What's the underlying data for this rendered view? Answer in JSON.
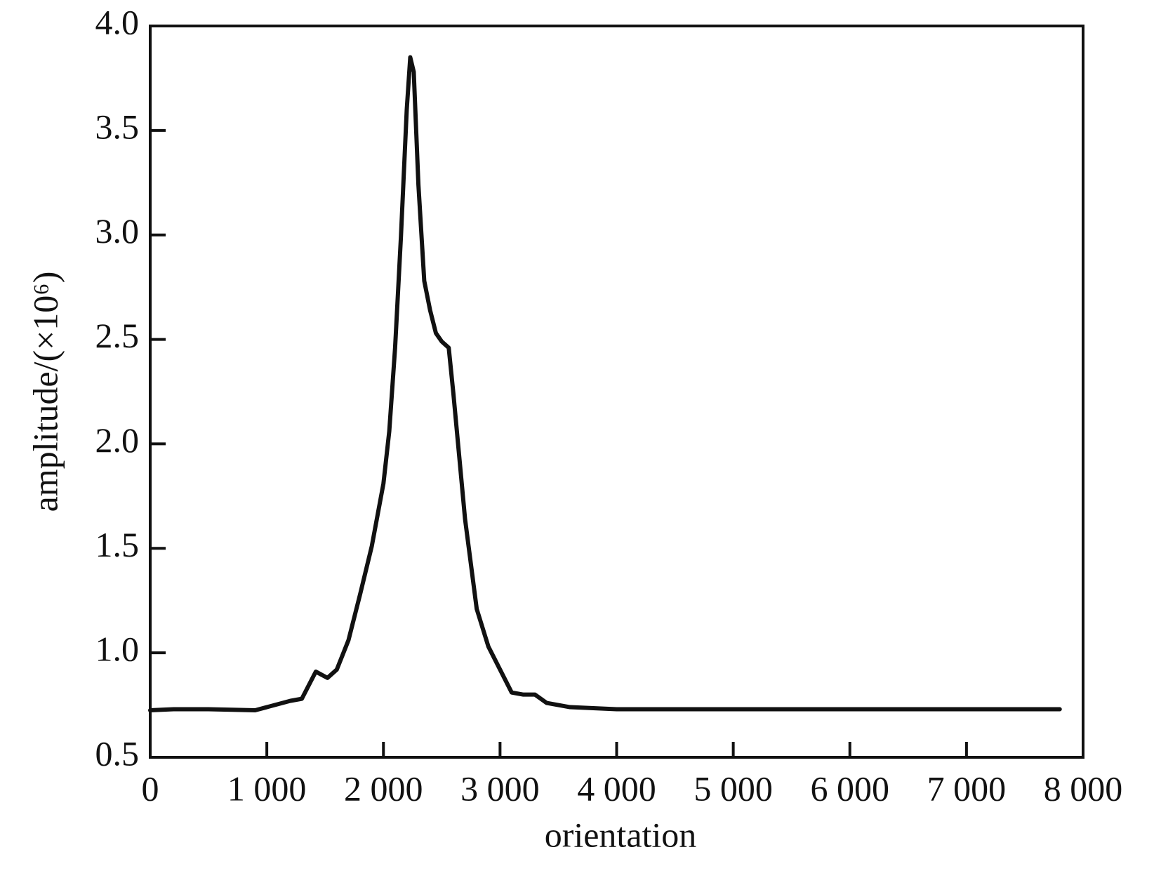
{
  "chart_data": {
    "type": "line",
    "xlabel": "orientation",
    "ylabel": "amplitude/(×10⁶)",
    "x": [
      0,
      200,
      500,
      900,
      1000,
      1200,
      1300,
      1420,
      1520,
      1600,
      1700,
      1800,
      1900,
      2000,
      2050,
      2100,
      2150,
      2200,
      2230,
      2260,
      2300,
      2350,
      2400,
      2450,
      2500,
      2560,
      2600,
      2700,
      2800,
      2900,
      3000,
      3100,
      3200,
      3300,
      3400,
      3600,
      4000,
      5000,
      6000,
      7000,
      7800
    ],
    "series": [
      {
        "name": "amplitude",
        "color": "#111111",
        "values": [
          0.725,
          0.73,
          0.73,
          0.725,
          0.74,
          0.77,
          0.78,
          0.91,
          0.88,
          0.92,
          1.06,
          1.28,
          1.51,
          1.81,
          2.06,
          2.46,
          2.99,
          3.6,
          3.85,
          3.78,
          3.24,
          2.78,
          2.64,
          2.53,
          2.49,
          2.46,
          2.24,
          1.64,
          1.21,
          1.03,
          0.92,
          0.81,
          0.8,
          0.8,
          0.76,
          0.74,
          0.73,
          0.73,
          0.73,
          0.73,
          0.73
        ]
      }
    ],
    "xlim": [
      0,
      8000
    ],
    "xticks": [
      0,
      {
        "value": 1000,
        "label": "1 000"
      },
      {
        "value": 2000,
        "label": "2 000"
      },
      {
        "value": 3000,
        "label": "3 000"
      },
      {
        "value": 4000,
        "label": "4 000"
      },
      {
        "value": 5000,
        "label": "5 000"
      },
      {
        "value": 6000,
        "label": "6 000"
      },
      {
        "value": 7000,
        "label": "7 000"
      },
      {
        "value": 8000,
        "label": "8 000"
      }
    ],
    "ylim": [
      0.5,
      4.0
    ],
    "yticks": [
      0.5,
      {
        "value": 1.0,
        "label": "1.0"
      },
      1.5,
      {
        "value": 2.0,
        "label": "2.0"
      },
      2.5,
      {
        "value": 3.0,
        "label": "3.0"
      },
      3.5,
      {
        "value": 4.0,
        "label": "4.0"
      }
    ],
    "grid": false
  }
}
